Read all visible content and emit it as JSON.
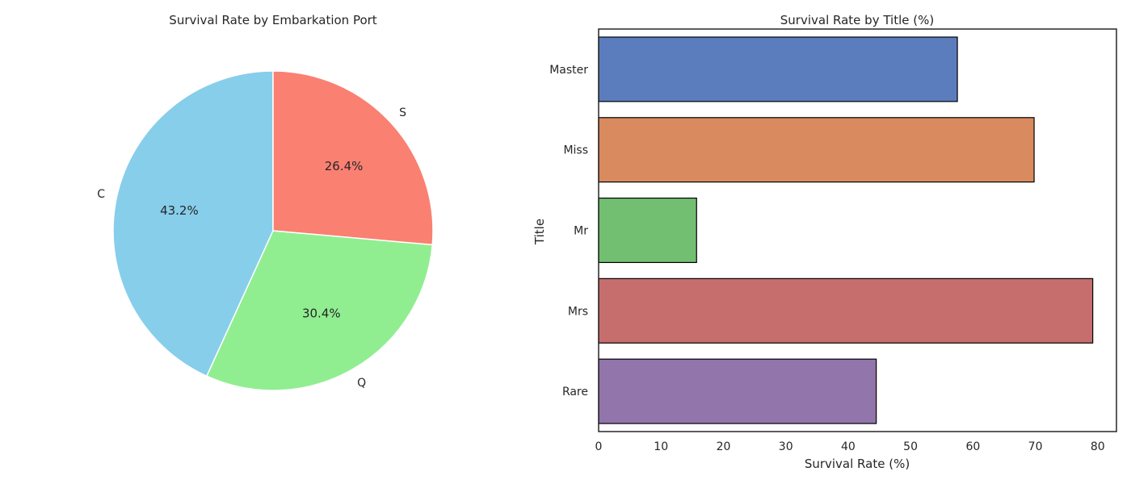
{
  "chart_data": [
    {
      "type": "pie",
      "title": "Survival Rate by Embarkation Port",
      "slices": [
        {
          "label": "C",
          "value": 43.2,
          "pct_label": "43.2%",
          "color": "#87ceeb"
        },
        {
          "label": "Q",
          "value": 30.4,
          "pct_label": "30.4%",
          "color": "#90ee90"
        },
        {
          "label": "S",
          "value": 26.4,
          "pct_label": "26.4%",
          "color": "#fa8072"
        }
      ]
    },
    {
      "type": "bar",
      "orientation": "horizontal",
      "title": "Survival Rate by Title (%)",
      "xlabel": "Survival Rate (%)",
      "ylabel": "Title",
      "categories": [
        "Master",
        "Miss",
        "Mr",
        "Mrs",
        "Rare"
      ],
      "values": [
        57.5,
        69.8,
        15.7,
        79.2,
        44.5
      ],
      "colors": [
        "#5b7dbd",
        "#d98b5f",
        "#72bf72",
        "#c66e6e",
        "#9275ab"
      ],
      "xlim": [
        0,
        83
      ],
      "xticks": [
        0,
        10,
        20,
        30,
        40,
        50,
        60,
        70,
        80
      ],
      "grid": false
    }
  ]
}
